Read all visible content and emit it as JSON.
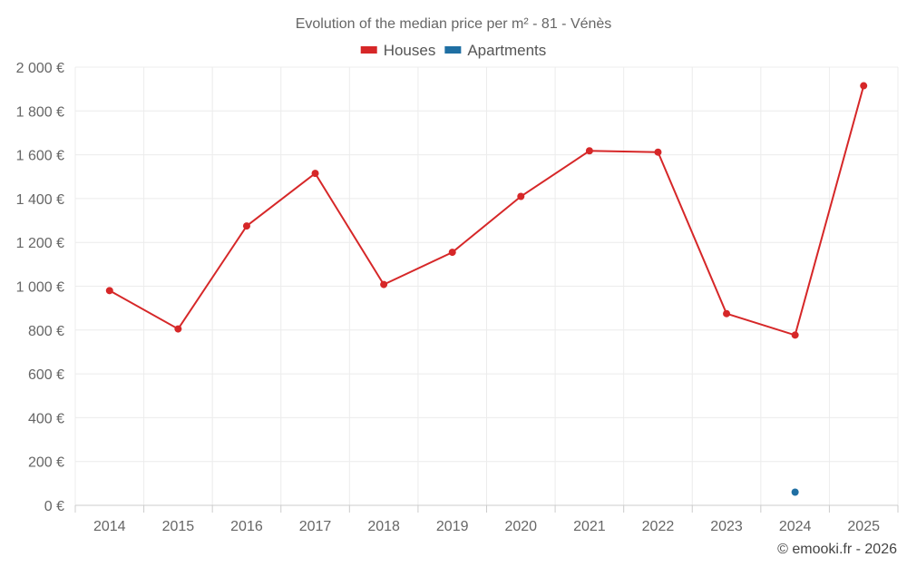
{
  "chart_data": {
    "type": "line",
    "title": "Evolution of the median price per m² - 81 - Vénès",
    "categories": [
      "2014",
      "2015",
      "2016",
      "2017",
      "2018",
      "2019",
      "2020",
      "2021",
      "2022",
      "2023",
      "2024",
      "2025"
    ],
    "series": [
      {
        "name": "Houses",
        "color": "#d62728",
        "values": [
          980,
          805,
          1275,
          1515,
          1008,
          1155,
          1410,
          1618,
          1612,
          875,
          777,
          1915
        ]
      },
      {
        "name": "Apartments",
        "color": "#1f6fa3",
        "values": [
          null,
          null,
          null,
          null,
          null,
          null,
          null,
          null,
          null,
          null,
          60,
          null
        ]
      }
    ],
    "ylim": [
      0,
      2000
    ],
    "yticks": [
      0,
      200,
      400,
      600,
      800,
      1000,
      1200,
      1400,
      1600,
      1800,
      2000
    ],
    "ytick_labels": [
      "0 €",
      "200 €",
      "400 €",
      "600 €",
      "800 €",
      "1 000 €",
      "1 200 €",
      "1 400 €",
      "1 600 €",
      "1 800 €",
      "2 000 €"
    ],
    "xlabel": "",
    "ylabel": "",
    "grid": true,
    "legend_position": "top-center"
  },
  "credit": "© emooki.fr - 2026"
}
